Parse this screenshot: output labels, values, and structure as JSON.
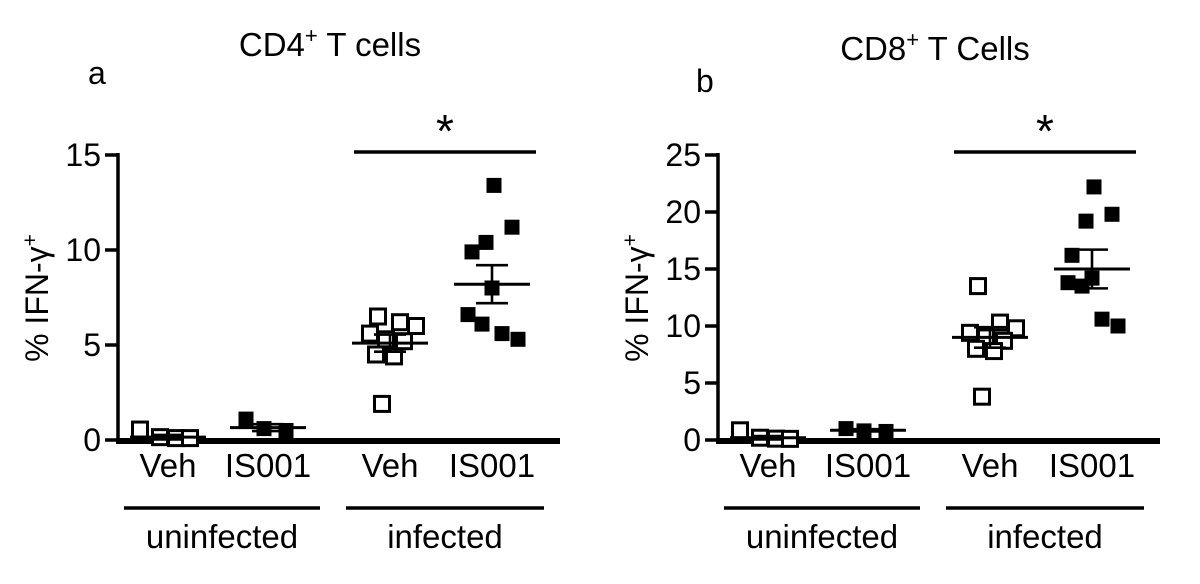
{
  "figure": {
    "background": "#ffffff",
    "ink": "#000000"
  },
  "chart_data": [
    {
      "type": "scatter",
      "panel_letter": "a",
      "title": {
        "base": "CD4",
        "sup": "+",
        "rest": " T cells"
      },
      "ylabel": {
        "base": "% IFN-γ",
        "sup": "+"
      },
      "ylim": [
        0,
        15
      ],
      "yticks": [
        0,
        5,
        10,
        15
      ],
      "grid": false,
      "groups": [
        {
          "tick_label": "Veh",
          "condition": "uninfected",
          "marker": "open-square",
          "values": [
            0.55,
            0.15,
            0.1,
            0.1
          ],
          "mean": 0.15,
          "sem": 0.12
        },
        {
          "tick_label": "IS001",
          "condition": "uninfected",
          "marker": "filled-square",
          "values": [
            1.1,
            0.6,
            0.5
          ],
          "mean": 0.65,
          "sem": 0.18
        },
        {
          "tick_label": "Veh",
          "condition": "infected",
          "marker": "open-square",
          "values": [
            6.5,
            6.2,
            6.0,
            5.6,
            5.3,
            5.2,
            4.5,
            4.4,
            1.9
          ],
          "mean": 5.1,
          "sem": 0.45
        },
        {
          "tick_label": "IS001",
          "condition": "infected",
          "marker": "filled-square",
          "values": [
            13.4,
            11.2,
            10.4,
            9.9,
            8.0,
            6.6,
            6.1,
            5.6,
            5.3
          ],
          "mean": 8.2,
          "sem": 1.0
        }
      ],
      "condition_labels": [
        {
          "label": "uninfected",
          "first_group": 0,
          "last_group": 1
        },
        {
          "label": "infected",
          "first_group": 2,
          "last_group": 3
        }
      ],
      "significance": {
        "label": "*",
        "between": [
          2,
          3
        ]
      }
    },
    {
      "type": "scatter",
      "panel_letter": "b",
      "title": {
        "base": "CD8",
        "sup": "+",
        "rest": " T Cells"
      },
      "ylabel": {
        "base": "% IFN-γ",
        "sup": "+"
      },
      "ylim": [
        0,
        25
      ],
      "yticks": [
        0,
        5,
        10,
        15,
        20,
        25
      ],
      "grid": false,
      "groups": [
        {
          "tick_label": "Veh",
          "condition": "uninfected",
          "marker": "open-square",
          "values": [
            0.85,
            0.2,
            0.12,
            0.1
          ],
          "mean": 0.2,
          "sem": 0.15
        },
        {
          "tick_label": "IS001",
          "condition": "uninfected",
          "marker": "filled-square",
          "values": [
            1.0,
            0.8,
            0.75
          ],
          "mean": 0.85,
          "sem": 0.1
        },
        {
          "tick_label": "Veh",
          "condition": "infected",
          "marker": "open-square",
          "values": [
            13.5,
            10.3,
            9.8,
            9.4,
            9.0,
            8.7,
            8.0,
            7.8,
            3.8
          ],
          "mean": 9.0,
          "sem": 0.9
        },
        {
          "tick_label": "IS001",
          "condition": "infected",
          "marker": "filled-square",
          "values": [
            22.2,
            19.8,
            19.2,
            16.2,
            14.2,
            13.8,
            13.5,
            10.6,
            10.0
          ],
          "mean": 15.0,
          "sem": 1.7
        }
      ],
      "condition_labels": [
        {
          "label": "uninfected",
          "first_group": 0,
          "last_group": 1
        },
        {
          "label": "infected",
          "first_group": 2,
          "last_group": 3
        }
      ],
      "significance": {
        "label": "*",
        "between": [
          2,
          3
        ]
      }
    }
  ]
}
